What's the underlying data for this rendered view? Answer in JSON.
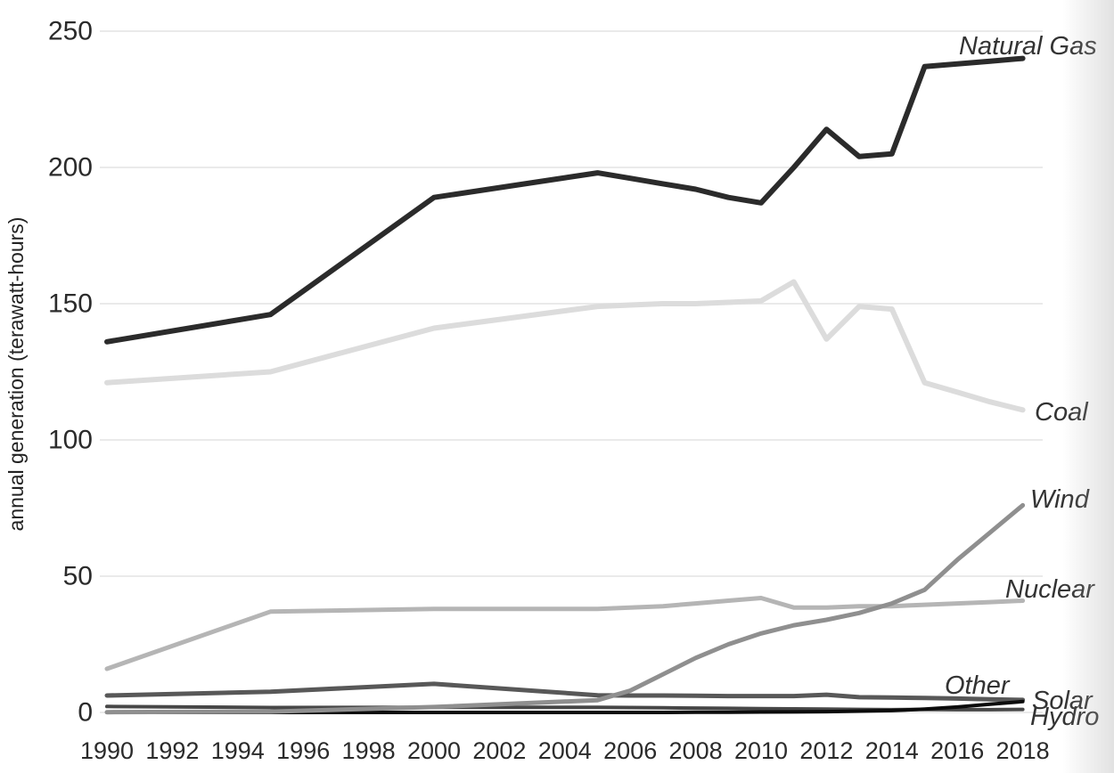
{
  "figure": {
    "background": "#ffffff",
    "gridline_color": "#eaeaea",
    "tick_label_color": "#2b2b2b",
    "series_label_color": "#333333",
    "axis_title_color": "#222222"
  },
  "chart_data": {
    "type": "line",
    "title": "",
    "xlabel": "",
    "ylabel": "annual generation (terawatt-hours)",
    "xlim": [
      1990,
      2018
    ],
    "ylim": [
      0,
      250
    ],
    "grid": "horizontal",
    "legend_position": "labels-at-line-ends",
    "x_ticks": [
      1990,
      1992,
      1994,
      1996,
      1998,
      2000,
      2002,
      2004,
      2006,
      2008,
      2010,
      2012,
      2014,
      2016,
      2018
    ],
    "y_ticks": [
      0,
      50,
      100,
      150,
      200,
      250
    ],
    "x": [
      1990,
      1995,
      2000,
      2005,
      2006,
      2007,
      2008,
      2009,
      2010,
      2011,
      2012,
      2013,
      2014,
      2015,
      2016,
      2017,
      2018
    ],
    "series": [
      {
        "name": "Coal",
        "key": "coal",
        "color": "#dcdcdc",
        "width": 6,
        "values": [
          121,
          125,
          141,
          149,
          149.5,
          150,
          150,
          150.5,
          151,
          158,
          137,
          149,
          148,
          121,
          117.5,
          114,
          111
        ]
      },
      {
        "name": "Nuclear",
        "key": "nuclear",
        "color": "#b5b5b5",
        "width": 5,
        "values": [
          16,
          37,
          38,
          38,
          38.5,
          39,
          40,
          41,
          42,
          38.5,
          38.5,
          39,
          39,
          39.5,
          40,
          40.5,
          41
        ]
      },
      {
        "name": "Other",
        "key": "other",
        "color": "#585858",
        "width": 5,
        "values": [
          6.2,
          7.6,
          10.5,
          6.3,
          6.2,
          6.2,
          6.1,
          6.0,
          6.0,
          6.0,
          6.5,
          5.6,
          5.5,
          5.3,
          5.1,
          4.8,
          4.6
        ]
      },
      {
        "name": "Hydro",
        "key": "hydro",
        "color": "#474747",
        "width": 4,
        "values": [
          2.2,
          1.8,
          1.9,
          1.9,
          1.8,
          1.7,
          1.6,
          1.5,
          1.4,
          1.3,
          1.2,
          1.1,
          1.0,
          1.1,
          1.0,
          1.0,
          1.1
        ]
      },
      {
        "name": "Solar",
        "key": "solar",
        "color": "#0b0b0b",
        "width": 4,
        "values": [
          0,
          0,
          0,
          0,
          0,
          0,
          0.05,
          0.1,
          0.15,
          0.2,
          0.3,
          0.5,
          0.7,
          1.2,
          2.0,
          3.0,
          4.0
        ]
      },
      {
        "name": "Wind",
        "key": "wind",
        "color": "#8f8f8f",
        "width": 5,
        "values": [
          0.1,
          0.3,
          2,
          4.5,
          8,
          14,
          20,
          25,
          29,
          32,
          34,
          36.5,
          40,
          45,
          56,
          66,
          76
        ]
      },
      {
        "name": "Natural Gas",
        "key": "natural_gas",
        "color": "#2b2b2b",
        "width": 6,
        "values": [
          136,
          146,
          189,
          198,
          196,
          194,
          192,
          189,
          187,
          200,
          214,
          204,
          205,
          237,
          238,
          239,
          240
        ]
      }
    ]
  }
}
